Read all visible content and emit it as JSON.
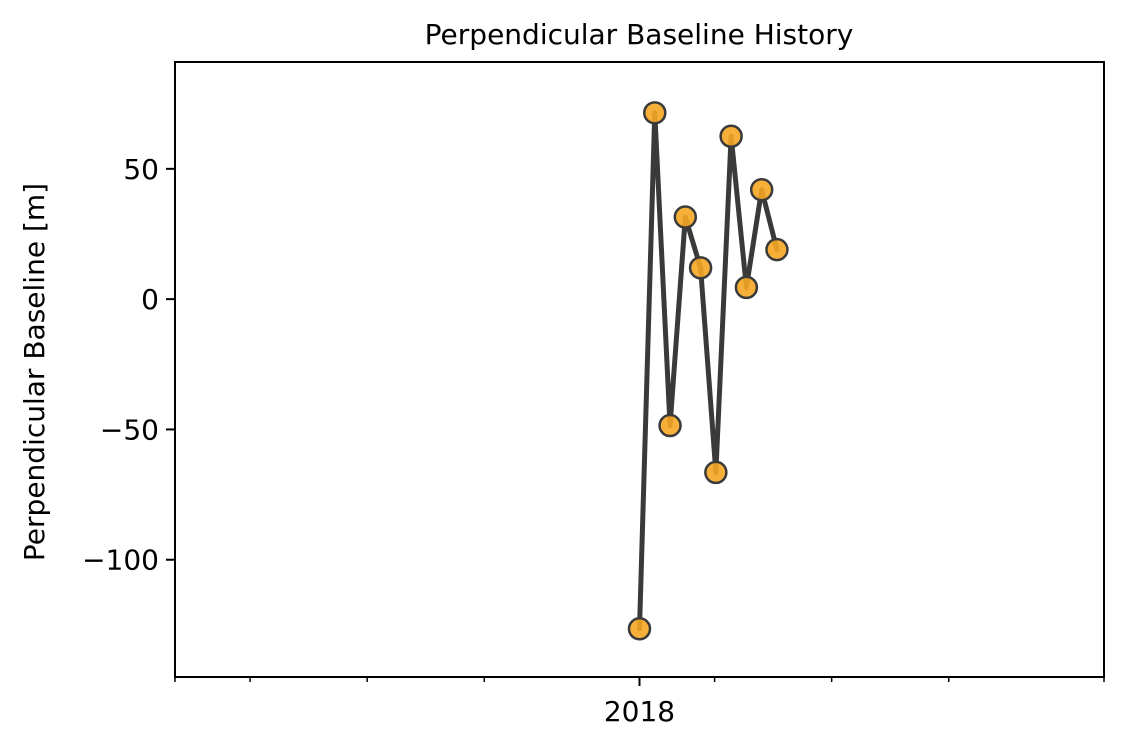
{
  "chart_data": {
    "type": "line",
    "title": "Perpendicular Baseline History",
    "xlabel": "",
    "ylabel": "Perpendicular Baseline [m]",
    "x_axis_type": "date",
    "xlim": [
      "2017-01-01",
      "2019-01-01"
    ],
    "ylim": [
      -145,
      91
    ],
    "grid": false,
    "legend": "none",
    "x_major_ticks": [
      {
        "date": "2018-01-01",
        "label": "2018"
      }
    ],
    "x_minor_ticks": [
      "2017-01-01",
      "2017-03-01",
      "2017-06-01",
      "2017-09-01",
      "2018-03-01",
      "2018-06-01",
      "2018-09-01",
      "2019-01-01"
    ],
    "y_ticks": [
      {
        "value": -100,
        "label": "−100"
      },
      {
        "value": -50,
        "label": "−50"
      },
      {
        "value": 0,
        "label": "0"
      },
      {
        "value": 50,
        "label": "50"
      }
    ],
    "series": [
      {
        "line_color": "#3a3a3a",
        "marker_face": "#f5a623",
        "marker_edge": "#3a3a3a",
        "x": [
          "2018-01-01",
          "2018-01-13",
          "2018-01-25",
          "2018-02-06",
          "2018-02-18",
          "2018-03-02",
          "2018-03-14",
          "2018-03-26",
          "2018-04-07",
          "2018-04-19"
        ],
        "y": [
          -126.5,
          71.5,
          -48.5,
          31.5,
          12,
          -66.5,
          62.5,
          4.5,
          42,
          19
        ]
      }
    ]
  }
}
